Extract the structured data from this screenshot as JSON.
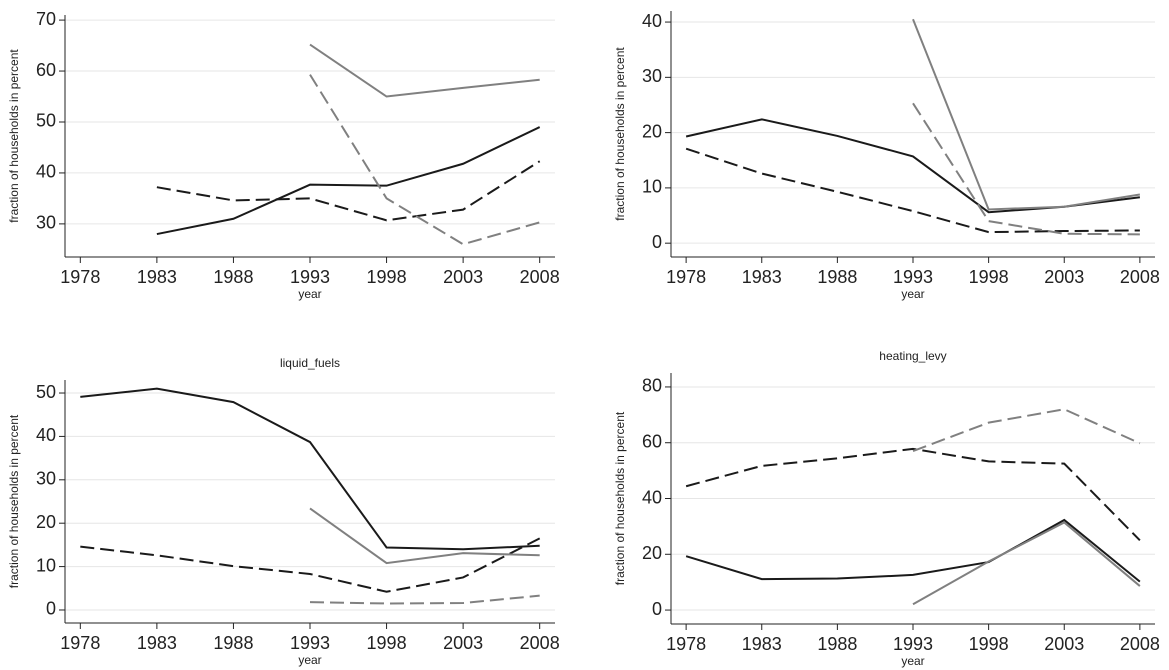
{
  "chart_data": [
    {
      "type": "line",
      "xlabel": "year",
      "ylabel": "fraction of households in percent",
      "x": [
        1978,
        1983,
        1988,
        1993,
        1998,
        2003,
        2008
      ],
      "xlim": [
        1977,
        2009
      ],
      "xticks": [
        1978,
        1983,
        1988,
        1993,
        1998,
        2003,
        2008
      ],
      "ylim": [
        23.5,
        71
      ],
      "yticks": [
        30,
        40,
        50,
        60,
        70
      ],
      "grid": true,
      "series": [
        {
          "color": "#1a1a1a",
          "dash": "solid",
          "values": [
            null,
            28,
            31,
            37.7,
            37.5,
            41.8,
            49
          ]
        },
        {
          "color": "#1a1a1a",
          "dash": "dashed",
          "values": [
            null,
            37.2,
            34.6,
            35,
            30.7,
            32.8,
            42.3
          ]
        },
        {
          "color": "#808080",
          "dash": "solid",
          "values": [
            null,
            null,
            null,
            65.2,
            55,
            56.7,
            58.3
          ]
        },
        {
          "color": "#808080",
          "dash": "dashed",
          "values": [
            null,
            null,
            null,
            59.3,
            35,
            26,
            30.3
          ]
        }
      ]
    },
    {
      "type": "line",
      "xlabel": "year",
      "ylabel": "fraction of households in percent",
      "x": [
        1978,
        1983,
        1988,
        1993,
        1998,
        2003,
        2008
      ],
      "xlim": [
        1977,
        2009
      ],
      "xticks": [
        1978,
        1983,
        1988,
        1993,
        1998,
        2003,
        2008
      ],
      "ylim": [
        -2.5,
        42
      ],
      "yticks": [
        0,
        10,
        20,
        30,
        40
      ],
      "grid": true,
      "series": [
        {
          "color": "#1a1a1a",
          "dash": "solid",
          "values": [
            19.3,
            22.4,
            19.4,
            15.7,
            5.6,
            6.6,
            8.3
          ]
        },
        {
          "color": "#1a1a1a",
          "dash": "dashed",
          "values": [
            17.1,
            12.6,
            9.3,
            5.8,
            2,
            2.2,
            2.3
          ]
        },
        {
          "color": "#808080",
          "dash": "solid",
          "values": [
            null,
            null,
            null,
            40.5,
            6.1,
            6.6,
            8.8
          ]
        },
        {
          "color": "#808080",
          "dash": "dashed",
          "values": [
            null,
            null,
            null,
            25.3,
            4,
            1.7,
            1.6
          ]
        }
      ]
    },
    {
      "type": "line",
      "title": "liquid_fuels",
      "xlabel": "year",
      "ylabel": "fraction of households in percent",
      "x": [
        1978,
        1983,
        1988,
        1993,
        1998,
        2003,
        2008
      ],
      "xlim": [
        1977,
        2009
      ],
      "xticks": [
        1978,
        1983,
        1988,
        1993,
        1998,
        2003,
        2008
      ],
      "ylim": [
        -3,
        53
      ],
      "yticks": [
        0,
        10,
        20,
        30,
        40,
        50
      ],
      "grid": true,
      "series": [
        {
          "color": "#1a1a1a",
          "dash": "solid",
          "values": [
            49.1,
            51,
            47.9,
            38.7,
            14.4,
            14,
            14.8
          ]
        },
        {
          "color": "#1a1a1a",
          "dash": "dashed",
          "values": [
            14.6,
            12.6,
            10.1,
            8.3,
            4.2,
            7.5,
            16.5
          ]
        },
        {
          "color": "#808080",
          "dash": "solid",
          "values": [
            null,
            null,
            null,
            23.4,
            10.8,
            13.1,
            12.6
          ]
        },
        {
          "color": "#808080",
          "dash": "dashed",
          "values": [
            null,
            null,
            null,
            1.8,
            1.5,
            1.6,
            3.3
          ]
        }
      ]
    },
    {
      "type": "line",
      "title": "heating_levy",
      "xlabel": "year",
      "ylabel": "fraction of households in percent",
      "x": [
        1978,
        1983,
        1988,
        1993,
        1998,
        2003,
        2008
      ],
      "xlim": [
        1977,
        2009
      ],
      "xticks": [
        1978,
        1983,
        1988,
        1993,
        1998,
        2003,
        2008
      ],
      "ylim": [
        -5,
        85
      ],
      "yticks": [
        0,
        20,
        40,
        60,
        80
      ],
      "grid": true,
      "series": [
        {
          "color": "#1a1a1a",
          "dash": "solid",
          "values": [
            19.3,
            11.1,
            11.3,
            12.6,
            17.2,
            32.3,
            10.2
          ]
        },
        {
          "color": "#1a1a1a",
          "dash": "dashed",
          "values": [
            44.4,
            51.7,
            54.4,
            57.8,
            53.3,
            52.5,
            25
          ]
        },
        {
          "color": "#808080",
          "dash": "solid",
          "values": [
            null,
            null,
            null,
            2.1,
            17.4,
            31.4,
            8.6
          ]
        },
        {
          "color": "#808080",
          "dash": "dashed",
          "values": [
            null,
            null,
            null,
            57,
            67.2,
            72,
            59.8
          ]
        }
      ]
    }
  ]
}
